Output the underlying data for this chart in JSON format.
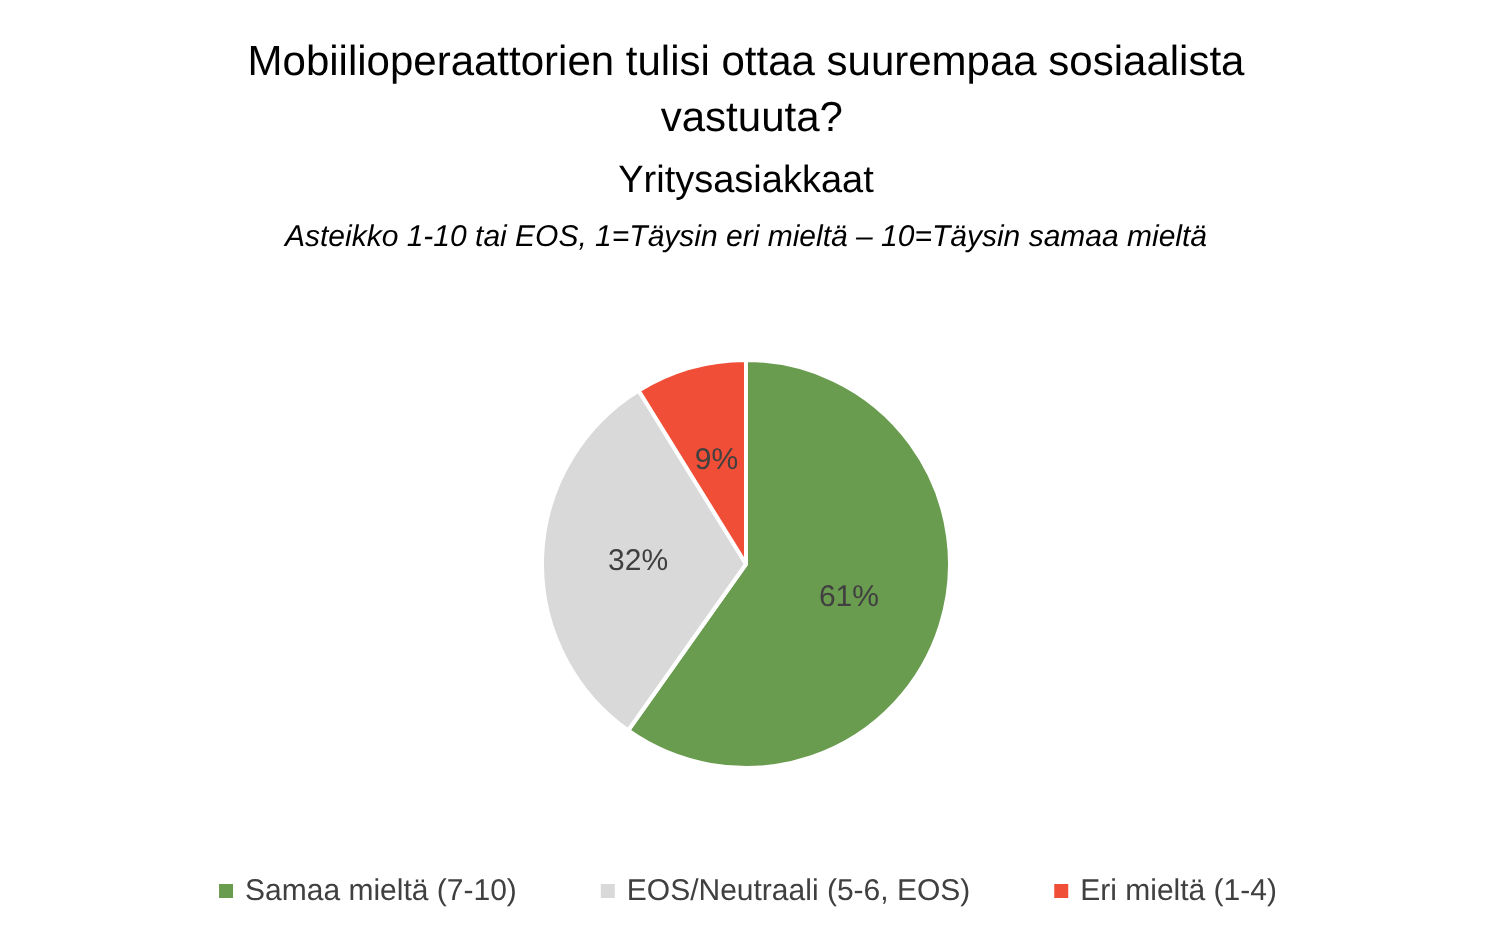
{
  "chart_data": {
    "type": "pie",
    "title": "Mobiilioperaattorien tulisi ottaa suurempaa sosiaalista vastuuta?",
    "subtitle": "Yritysasiakkaat",
    "annotations": [
      "Asteikko 1-10 tai EOS, 1=Täysin eri mieltä – 10=Täysin samaa mieltä"
    ],
    "categories": [
      "Samaa mieltä (7-10)",
      "EOS/Neutraali (5-6, EOS)",
      "Eri mieltä (1-4)"
    ],
    "values": [
      61,
      32,
      9
    ],
    "colors": [
      "#6a9c50",
      "#d9d9d9",
      "#f04e37"
    ],
    "value_labels": [
      "61%",
      "32%",
      "9%"
    ],
    "legend": "bottom"
  }
}
